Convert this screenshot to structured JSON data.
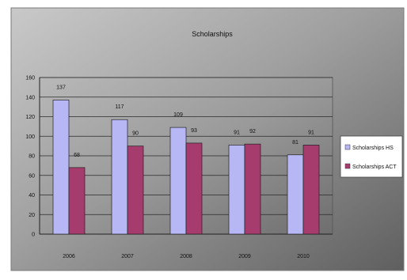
{
  "chart_data": {
    "type": "bar",
    "title": "Scholarships",
    "categories": [
      "2006",
      "2007",
      "2008",
      "2009",
      "2010"
    ],
    "series": [
      {
        "name": "Scholarships HS",
        "values": [
          137,
          117,
          109,
          91,
          81
        ],
        "labels": [
          "137",
          "117",
          "109",
          "91",
          "81"
        ],
        "color": "#b7b7f5"
      },
      {
        "name": "Scholarships ACT",
        "values": [
          68,
          90,
          93,
          92,
          91
        ],
        "labels": [
          "68",
          "90",
          "93",
          "92",
          "91"
        ],
        "color": "#a63c6e"
      }
    ],
    "ylim": [
      0,
      160
    ],
    "yticks": [
      0,
      20,
      40,
      60,
      80,
      100,
      120,
      140,
      160
    ],
    "xlabel": "",
    "ylabel": "",
    "grid": true,
    "legend": "right"
  }
}
